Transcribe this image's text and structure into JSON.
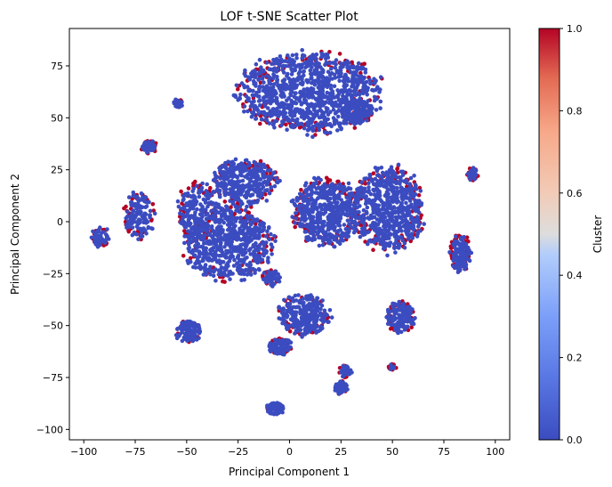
{
  "chart_data": {
    "type": "scatter",
    "title": "LOF t-SNE Scatter Plot",
    "xlabel": "Principal Component 1",
    "ylabel": "Principal Component 2",
    "xlim": [
      -107,
      107
    ],
    "ylim": [
      -105,
      93
    ],
    "xticks": [
      -100,
      -75,
      -50,
      -25,
      0,
      25,
      50,
      75,
      100
    ],
    "yticks": [
      -100,
      -75,
      -50,
      -25,
      0,
      25,
      50,
      75
    ],
    "colorbar": {
      "label": "Cluster",
      "ticks": [
        "0.0",
        "0.2",
        "0.4",
        "0.6",
        "0.8",
        "1.0"
      ],
      "range": [
        0,
        1
      ],
      "colormap": "coolwarm",
      "low_color": "#3b4cc0",
      "mid_color": "#dddddd",
      "high_color": "#b40426"
    },
    "grid": false,
    "outlier_color": "#b40426",
    "inlier_color": "#3b4cc0",
    "clusters": [
      {
        "x": 10,
        "y": 62,
        "w": 34,
        "h": 19,
        "n": 1100,
        "outlier_frac": 0.08
      },
      {
        "x": 48,
        "y": 6,
        "w": 17,
        "h": 20,
        "n": 700,
        "outlier_frac": 0.1
      },
      {
        "x": 18,
        "y": 5,
        "w": 16,
        "h": 16,
        "n": 600,
        "outlier_frac": 0.1
      },
      {
        "x": -30,
        "y": -10,
        "w": 21,
        "h": 18,
        "n": 700,
        "outlier_frac": 0.08
      },
      {
        "x": -22,
        "y": 19,
        "w": 16,
        "h": 11,
        "n": 380,
        "outlier_frac": 0.1
      },
      {
        "x": -45,
        "y": 5,
        "w": 9,
        "h": 14,
        "n": 200,
        "outlier_frac": 0.12
      },
      {
        "x": -73,
        "y": 3,
        "w": 7,
        "h": 11,
        "n": 150,
        "outlier_frac": 0.12
      },
      {
        "x": -92,
        "y": -7,
        "w": 4,
        "h": 5,
        "n": 70,
        "outlier_frac": 0.15
      },
      {
        "x": -68,
        "y": 36,
        "w": 4,
        "h": 3,
        "n": 60,
        "outlier_frac": 0.15
      },
      {
        "x": -54,
        "y": 57,
        "w": 2.5,
        "h": 2,
        "n": 30,
        "outlier_frac": 0.15
      },
      {
        "x": 89,
        "y": 23,
        "w": 2.5,
        "h": 3,
        "n": 35,
        "outlier_frac": 0.2
      },
      {
        "x": 83,
        "y": -15,
        "w": 5,
        "h": 9,
        "n": 180,
        "outlier_frac": 0.15
      },
      {
        "x": 54,
        "y": -46,
        "w": 7,
        "h": 7,
        "n": 170,
        "outlier_frac": 0.12
      },
      {
        "x": 7,
        "y": -45,
        "w": 12,
        "h": 10,
        "n": 280,
        "outlier_frac": 0.1
      },
      {
        "x": -5,
        "y": -60,
        "w": 6,
        "h": 4,
        "n": 100,
        "outlier_frac": 0.1
      },
      {
        "x": -49,
        "y": -53,
        "w": 6,
        "h": 5,
        "n": 120,
        "outlier_frac": 0.08
      },
      {
        "x": -9,
        "y": -27,
        "w": 4,
        "h": 4,
        "n": 60,
        "outlier_frac": 0.05
      },
      {
        "x": 25,
        "y": -80,
        "w": 3,
        "h": 3,
        "n": 60,
        "outlier_frac": 0.05
      },
      {
        "x": 27,
        "y": -72,
        "w": 3,
        "h": 3,
        "n": 40,
        "outlier_frac": 0.2
      },
      {
        "x": -7,
        "y": -90,
        "w": 4,
        "h": 3,
        "n": 70,
        "outlier_frac": 0.05
      },
      {
        "x": 50,
        "y": -70,
        "w": 2,
        "h": 1.5,
        "n": 12,
        "outlier_frac": 0.25
      },
      {
        "x": 33,
        "y": 53,
        "w": 7,
        "h": 6,
        "n": 150,
        "outlier_frac": 0.1
      }
    ]
  }
}
